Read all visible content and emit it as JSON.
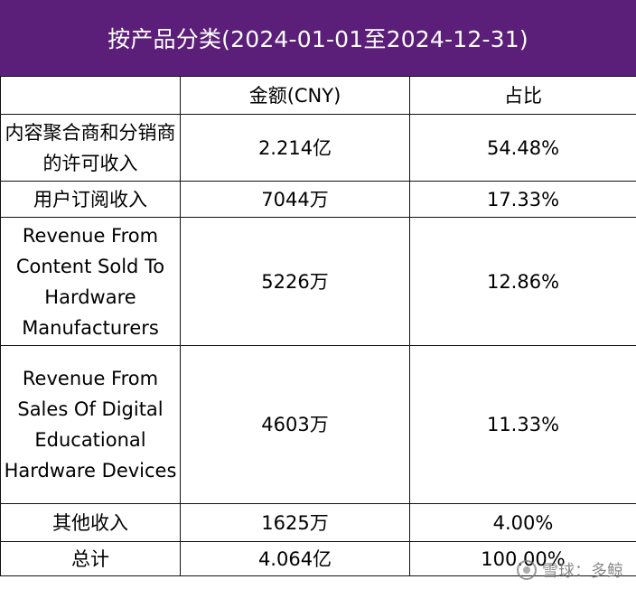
{
  "header": {
    "title": "按产品分类(2024-01-01至2024-12-31)"
  },
  "table": {
    "columns": [
      "",
      "金额(CNY)",
      "占比"
    ],
    "rows": [
      {
        "category": "内容聚合商和分销商的许可收入",
        "amount": "2.214亿",
        "share": "54.48%"
      },
      {
        "category": "用户订阅收入",
        "amount": "7044万",
        "share": "17.33%"
      },
      {
        "category": "Revenue From Content Sold To Hardware Manufacturers",
        "amount": "5226万",
        "share": "12.86%"
      },
      {
        "category": "Revenue From Sales Of Digital Educational Hardware Devices",
        "amount": "4603万",
        "share": "11.33%"
      },
      {
        "category": "其他收入",
        "amount": "1625万",
        "share": "4.00%"
      },
      {
        "category": "总计",
        "amount": "4.064亿",
        "share": "100.00%"
      }
    ]
  },
  "watermark": {
    "text": "雪球：多鲸"
  },
  "colors": {
    "header_bg": "#5b1f7a",
    "header_text": "#ffffff",
    "border": "#111111"
  }
}
